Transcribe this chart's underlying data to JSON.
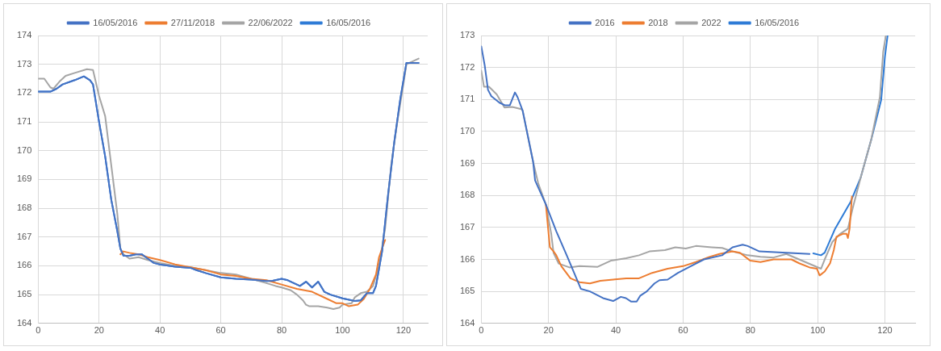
{
  "chart_data": [
    {
      "type": "line",
      "legend": "top",
      "grid": true,
      "marker": "none",
      "line_style": "solid",
      "xlim": [
        0,
        128
      ],
      "ylim": [
        164,
        174
      ],
      "xticks": [
        0,
        20,
        40,
        60,
        80,
        100,
        120
      ],
      "yticks": [
        164,
        165,
        166,
        167,
        168,
        169,
        170,
        171,
        172,
        173,
        174
      ],
      "series": [
        {
          "name": "16/05/2016",
          "color": "#4472c4",
          "x": [
            0,
            4,
            6,
            8,
            12,
            15,
            17,
            18,
            20,
            22,
            24,
            26,
            27,
            28,
            30,
            32,
            34,
            36,
            38,
            40,
            45,
            50,
            52,
            55,
            60,
            65,
            70,
            75,
            77,
            80,
            82,
            84,
            86,
            88,
            90,
            92,
            94,
            96,
            100,
            104,
            106,
            108,
            110,
            111,
            113,
            115,
            117,
            119,
            121,
            123,
            125
          ],
          "values": [
            172.05,
            172.05,
            172.15,
            172.3,
            172.45,
            172.58,
            172.45,
            172.3,
            171.0,
            169.8,
            168.3,
            167.2,
            166.6,
            166.35,
            166.35,
            166.4,
            166.4,
            166.25,
            166.1,
            166.05,
            165.97,
            165.93,
            165.85,
            165.75,
            165.6,
            165.55,
            165.52,
            165.47,
            165.48,
            165.55,
            165.5,
            165.4,
            165.3,
            165.45,
            165.25,
            165.45,
            165.1,
            165.0,
            164.87,
            164.78,
            164.8,
            165.05,
            165.05,
            165.3,
            166.5,
            168.5,
            170.3,
            171.8,
            173.05,
            173.05,
            173.05
          ]
        },
        {
          "name": "27/11/2018",
          "color": "#ed7d31",
          "x": [
            27,
            28,
            30,
            33,
            36,
            40,
            45,
            50,
            55,
            60,
            65,
            70,
            75,
            80,
            85,
            90,
            95,
            98,
            100,
            102,
            105,
            107,
            109,
            111,
            112,
            113,
            114
          ],
          "values": [
            166.4,
            166.5,
            166.45,
            166.4,
            166.3,
            166.2,
            166.05,
            165.95,
            165.85,
            165.7,
            165.65,
            165.55,
            165.5,
            165.35,
            165.2,
            165.1,
            164.85,
            164.7,
            164.7,
            164.6,
            164.65,
            164.85,
            165.2,
            165.7,
            166.3,
            166.6,
            166.9
          ]
        },
        {
          "name": "22/06/2022",
          "color": "#a5a5a5",
          "x": [
            0,
            2,
            4,
            5,
            7,
            9,
            12,
            16,
            18,
            20,
            22,
            24,
            26,
            27,
            28,
            30,
            33,
            36,
            40,
            45,
            50,
            55,
            60,
            65,
            70,
            75,
            78,
            80,
            83,
            85,
            87,
            88,
            89,
            92,
            95,
            97,
            99,
            100,
            103,
            104,
            106,
            108,
            110,
            112,
            114,
            116,
            118,
            120,
            121,
            123,
            125
          ],
          "values": [
            172.5,
            172.5,
            172.2,
            172.15,
            172.4,
            172.6,
            172.7,
            172.83,
            172.8,
            171.9,
            171.2,
            169.5,
            167.8,
            166.6,
            166.4,
            166.25,
            166.3,
            166.2,
            166.1,
            166.0,
            165.95,
            165.85,
            165.75,
            165.7,
            165.55,
            165.4,
            165.3,
            165.25,
            165.15,
            165.0,
            164.8,
            164.65,
            164.6,
            164.6,
            164.55,
            164.5,
            164.55,
            164.65,
            164.7,
            164.9,
            165.05,
            165.1,
            165.3,
            166.0,
            167.3,
            169.5,
            171.0,
            172.3,
            173.0,
            173.1,
            173.2
          ]
        },
        {
          "name": "16/05/2016",
          "color": "#2e7bd6",
          "x": [
            0,
            4,
            6,
            8,
            12,
            15,
            17,
            18,
            20,
            22,
            24,
            26,
            27,
            28,
            30,
            32,
            34,
            36,
            38,
            40,
            45,
            50,
            52,
            55,
            60,
            65,
            70,
            75,
            77,
            80,
            82,
            84,
            86,
            88,
            90,
            92,
            94,
            96,
            100,
            104,
            106,
            108,
            110,
            111,
            113,
            115,
            117,
            119,
            121,
            123,
            125
          ],
          "values": [
            172.05,
            172.05,
            172.15,
            172.3,
            172.45,
            172.58,
            172.45,
            172.3,
            171.0,
            169.8,
            168.3,
            167.2,
            166.6,
            166.35,
            166.35,
            166.4,
            166.4,
            166.25,
            166.1,
            166.05,
            165.97,
            165.93,
            165.85,
            165.75,
            165.6,
            165.55,
            165.52,
            165.47,
            165.48,
            165.55,
            165.5,
            165.4,
            165.3,
            165.45,
            165.25,
            165.45,
            165.1,
            165.0,
            164.87,
            164.78,
            164.8,
            165.05,
            165.05,
            165.3,
            166.5,
            168.5,
            170.3,
            171.8,
            173.05,
            173.05,
            173.05
          ]
        }
      ]
    },
    {
      "type": "line",
      "legend": "top",
      "grid": true,
      "marker": "none",
      "line_style": "solid",
      "xlim": [
        0,
        129
      ],
      "ylim": [
        164,
        173
      ],
      "xticks": [
        0,
        20,
        40,
        60,
        80,
        100,
        120
      ],
      "yticks": [
        164,
        165,
        166,
        167,
        168,
        169,
        170,
        171,
        172,
        173
      ],
      "series": [
        {
          "name": "2016",
          "color": "#4472c4",
          "x": [
            0,
            1,
            2,
            3,
            5.4,
            7,
            8.5,
            10,
            10.8,
            12.3,
            15.4,
            16,
            19.2,
            22.3,
            25.4,
            29.6,
            32.3,
            36.2,
            39.2,
            41.5,
            43,
            44.6,
            46.2,
            47.3,
            49.2,
            51.5,
            53,
            55.4,
            58.5,
            62.3,
            66.2,
            71.6,
            74.7,
            77.7,
            79.2,
            82.7,
            97.6
          ],
          "values": [
            172.66,
            172.08,
            171.3,
            171.1,
            170.9,
            170.82,
            170.82,
            171.22,
            171.07,
            170.65,
            169.06,
            168.47,
            167.72,
            166.88,
            166.13,
            165.08,
            165.0,
            164.79,
            164.7,
            164.83,
            164.79,
            164.68,
            164.68,
            164.87,
            165.0,
            165.25,
            165.35,
            165.37,
            165.58,
            165.79,
            166.0,
            166.13,
            166.38,
            166.46,
            166.42,
            166.25,
            166.17
          ]
        },
        {
          "name": "2018",
          "color": "#ed7d31",
          "x": [
            19.2,
            20.4,
            21.5,
            22.3,
            23.8,
            26.5,
            29.2,
            32.3,
            35.4,
            39.2,
            43.1,
            46.9,
            50.8,
            55.4,
            60,
            63.8,
            67.8,
            70.8,
            74.7,
            76.9,
            80,
            83,
            86.9,
            92.2,
            94.5,
            97.6,
            99.8,
            100.6,
            102.1,
            103.7,
            104.8,
            105.6,
            107.5,
            108.6,
            109,
            109.5,
            110.2
          ],
          "values": [
            167.72,
            166.38,
            166.25,
            166.13,
            165.79,
            165.41,
            165.29,
            165.25,
            165.33,
            165.37,
            165.41,
            165.41,
            165.58,
            165.71,
            165.79,
            165.92,
            166.08,
            166.17,
            166.25,
            166.21,
            165.96,
            165.92,
            166.0,
            166.0,
            165.88,
            165.75,
            165.71,
            165.5,
            165.62,
            165.88,
            166.29,
            166.71,
            166.8,
            166.8,
            166.67,
            166.96,
            167.97
          ]
        },
        {
          "name": "2022",
          "color": "#a5a5a5",
          "x": [
            0,
            0.8,
            2.3,
            4.6,
            6.9,
            9.2,
            11.9,
            12.3,
            15.4,
            16.9,
            19.2,
            20.8,
            21.5,
            23,
            26.2,
            29.2,
            34.6,
            38.5,
            43.1,
            46.9,
            50,
            54.6,
            57.7,
            60.8,
            63.8,
            68.5,
            71.6,
            74.7,
            79.2,
            83,
            86.9,
            90.7,
            94.5,
            98.3,
            101,
            102.1,
            104.4,
            106.7,
            109,
            110.5,
            112.8,
            115.9,
            118.5,
            119.5,
            120.3
          ],
          "values": [
            171.9,
            171.4,
            171.4,
            171.16,
            170.75,
            170.77,
            170.7,
            170.65,
            169.06,
            168.39,
            167.72,
            166.8,
            166.2,
            165.87,
            165.75,
            165.79,
            165.77,
            165.96,
            166.04,
            166.13,
            166.25,
            166.29,
            166.38,
            166.34,
            166.42,
            166.38,
            166.36,
            166.25,
            166.13,
            166.08,
            166.06,
            166.17,
            166.0,
            165.83,
            165.71,
            166.0,
            166.55,
            166.8,
            166.96,
            167.63,
            168.56,
            169.73,
            171.07,
            172.5,
            173.0
          ]
        },
        {
          "name": "16/05/2016",
          "color": "#2e7bd6",
          "x": [
            98.7,
            101,
            102.1,
            105.2,
            109.8,
            112.8,
            115.9,
            118.9,
            120,
            120.8
          ],
          "values": [
            166.19,
            166.13,
            166.21,
            166.96,
            167.8,
            168.56,
            169.73,
            170.99,
            172.33,
            173.0
          ]
        }
      ]
    }
  ]
}
